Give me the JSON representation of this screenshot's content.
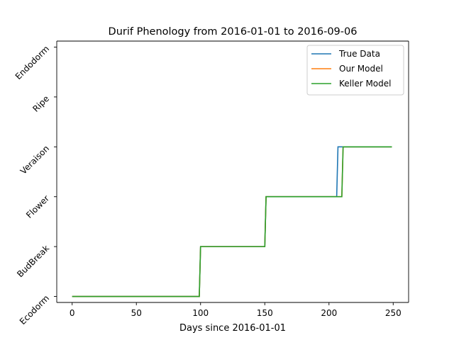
{
  "chart_data": {
    "type": "line",
    "title": "Durif Phenology from 2016-01-01 to 2016-09-06",
    "xlabel": "Days since 2016-01-01",
    "ylabel": "",
    "xlim": [
      -12,
      262
    ],
    "ylim": [
      -0.12,
      5.12
    ],
    "xticks": [
      0,
      50,
      100,
      150,
      200,
      250
    ],
    "yticks": [
      0,
      1,
      2,
      3,
      4,
      5
    ],
    "ytick_labels": [
      "Ecodorm",
      "BudBreak",
      "Flower",
      "Veraison",
      "Ripe",
      "Endodorm"
    ],
    "legend_position": "top-right",
    "grid": false,
    "series": [
      {
        "name": "True Data",
        "color": "#1f77b4",
        "x": [
          0,
          99,
          100,
          150,
          151,
          206,
          207,
          249
        ],
        "y": [
          0,
          0,
          1,
          1,
          2,
          2,
          3,
          3
        ]
      },
      {
        "name": "Our Model",
        "color": "#ff7f0e",
        "x": [
          0,
          99,
          100,
          150,
          151,
          210,
          211,
          249
        ],
        "y": [
          0,
          0,
          1,
          1,
          2,
          2,
          3,
          3
        ]
      },
      {
        "name": "Keller Model",
        "color": "#2ca02c",
        "x": [
          0,
          99,
          100,
          150,
          151,
          210,
          211,
          249
        ],
        "y": [
          0,
          0,
          1,
          1,
          2,
          2,
          3,
          3
        ]
      }
    ]
  }
}
